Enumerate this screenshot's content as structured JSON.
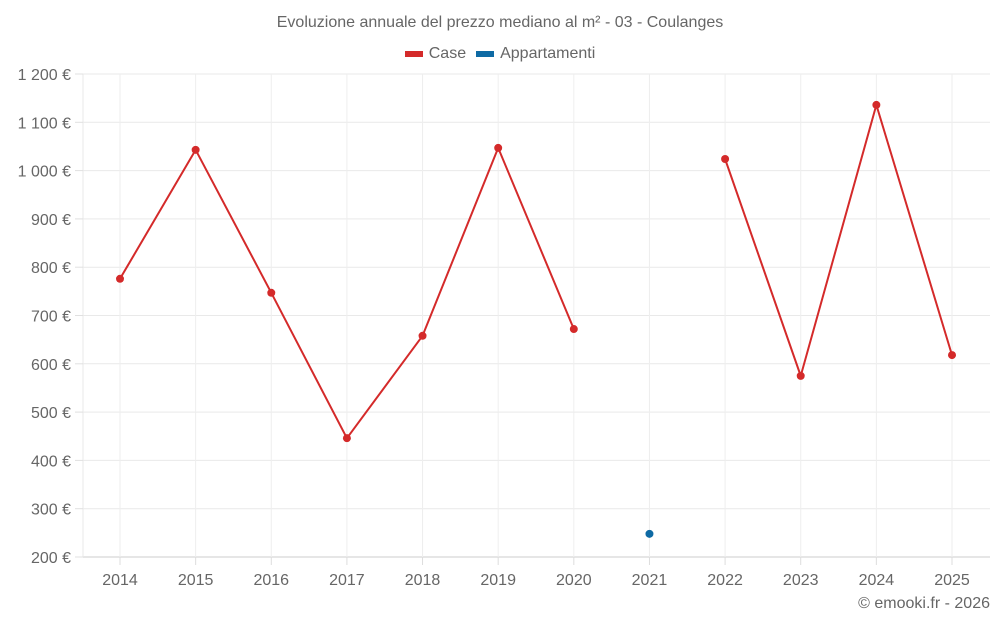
{
  "chart_data": {
    "type": "line",
    "title": "Evoluzione annuale del prezzo mediano al m² - 03 - Coulanges",
    "xlabel": "",
    "ylabel": "",
    "categories": [
      "2014",
      "2015",
      "2016",
      "2017",
      "2018",
      "2019",
      "2020",
      "2021",
      "2022",
      "2023",
      "2024",
      "2025"
    ],
    "series": [
      {
        "name": "Case",
        "color": "#d42a2a",
        "values": [
          776,
          1043,
          747,
          446,
          658,
          1047,
          672,
          null,
          1024,
          575,
          1136,
          618
        ]
      },
      {
        "name": "Appartamenti",
        "color": "#0e6aa4",
        "values": [
          null,
          null,
          null,
          null,
          null,
          null,
          null,
          248,
          null,
          null,
          null,
          null
        ]
      }
    ],
    "ylim": [
      200,
      1200
    ],
    "yticks": [
      200,
      300,
      400,
      500,
      600,
      700,
      800,
      900,
      1000,
      1100,
      1200
    ],
    "ytick_labels": [
      "200 €",
      "300 €",
      "400 €",
      "500 €",
      "600 €",
      "700 €",
      "800 €",
      "900 €",
      "1 000 €",
      "1 100 €",
      "1 200 €"
    ],
    "grid": true,
    "legend_position": "top"
  },
  "header": {
    "title": "Evoluzione annuale del prezzo mediano al m² - 03 - Coulanges"
  },
  "legend": {
    "items": [
      {
        "label": "Case",
        "color": "#d42a2a"
      },
      {
        "label": "Appartamenti",
        "color": "#0e6aa4"
      }
    ]
  },
  "footer": {
    "credit": "© emooki.fr - 2026"
  }
}
